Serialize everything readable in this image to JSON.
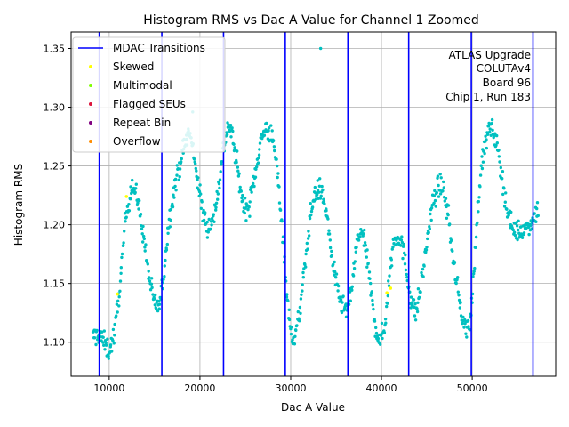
{
  "chart_data": {
    "type": "scatter",
    "title": "Histogram RMS vs Dac A Value for Channel 1 Zoomed",
    "xlabel": "Dac A Value",
    "ylabel": "Histogram RMS",
    "xlim": [
      5800,
      59200
    ],
    "ylim": [
      1.071,
      1.364
    ],
    "grid": true,
    "xticks": [
      10000,
      20000,
      30000,
      40000,
      50000
    ],
    "xtick_labels": [
      "10000",
      "20000",
      "30000",
      "40000",
      "50000"
    ],
    "yticks": [
      1.1,
      1.15,
      1.2,
      1.25,
      1.3,
      1.35
    ],
    "ytick_labels": [
      "1.10",
      "1.15",
      "1.20",
      "1.25",
      "1.30",
      "1.35"
    ],
    "mdac_transitions": [
      8900,
      15800,
      22600,
      29400,
      36300,
      43000,
      49900,
      56700
    ],
    "legend": {
      "placement": "top-left",
      "entries": [
        {
          "label": "MDAC Transitions",
          "kind": "line",
          "color": "#0000ff"
        },
        {
          "label": "Skewed",
          "kind": "dot",
          "color": "#ffff00"
        },
        {
          "label": "Multimodal",
          "kind": "dot",
          "color": "#7fff00"
        },
        {
          "label": "Flagged SEUs",
          "kind": "dot",
          "color": "#dc143c"
        },
        {
          "label": "Repeat Bin",
          "kind": "dot",
          "color": "#800080"
        },
        {
          "label": "Overflow",
          "kind": "dot",
          "color": "#ff8c00"
        }
      ]
    },
    "annotation_lines": [
      "ATLAS Upgrade",
      "COLUTAv4",
      "Board 96",
      "Chip 1, Run 183"
    ],
    "series": [
      {
        "name": "Data",
        "color": "#00c0c0",
        "trend": [
          [
            8200,
            1.104
          ],
          [
            8900,
            1.107
          ],
          [
            9400,
            1.1
          ],
          [
            10000,
            1.092
          ],
          [
            10600,
            1.108
          ],
          [
            11200,
            1.15
          ],
          [
            11800,
            1.205
          ],
          [
            12500,
            1.235
          ],
          [
            13100,
            1.222
          ],
          [
            13700,
            1.195
          ],
          [
            14300,
            1.16
          ],
          [
            14900,
            1.135
          ],
          [
            15500,
            1.13
          ],
          [
            15900,
            1.15
          ],
          [
            16400,
            1.19
          ],
          [
            17000,
            1.225
          ],
          [
            17600,
            1.245
          ],
          [
            18200,
            1.265
          ],
          [
            18800,
            1.28
          ],
          [
            19300,
            1.262
          ],
          [
            19800,
            1.235
          ],
          [
            20300,
            1.21
          ],
          [
            20900,
            1.198
          ],
          [
            21500,
            1.205
          ],
          [
            22100,
            1.235
          ],
          [
            22600,
            1.265
          ],
          [
            23100,
            1.285
          ],
          [
            23600,
            1.275
          ],
          [
            24200,
            1.245
          ],
          [
            24800,
            1.215
          ],
          [
            25400,
            1.215
          ],
          [
            26000,
            1.24
          ],
          [
            26600,
            1.268
          ],
          [
            27200,
            1.282
          ],
          [
            27800,
            1.278
          ],
          [
            28400,
            1.255
          ],
          [
            29000,
            1.205
          ],
          [
            29400,
            1.16
          ],
          [
            29900,
            1.112
          ],
          [
            30400,
            1.102
          ],
          [
            30900,
            1.12
          ],
          [
            31500,
            1.16
          ],
          [
            32100,
            1.205
          ],
          [
            32700,
            1.228
          ],
          [
            33300,
            1.23
          ],
          [
            33900,
            1.212
          ],
          [
            34500,
            1.175
          ],
          [
            35100,
            1.145
          ],
          [
            35700,
            1.13
          ],
          [
            36300,
            1.127
          ],
          [
            36800,
            1.15
          ],
          [
            37300,
            1.185
          ],
          [
            37800,
            1.195
          ],
          [
            38300,
            1.178
          ],
          [
            38800,
            1.145
          ],
          [
            39300,
            1.115
          ],
          [
            39800,
            1.1
          ],
          [
            40300,
            1.11
          ],
          [
            40800,
            1.15
          ],
          [
            41300,
            1.185
          ],
          [
            41800,
            1.192
          ],
          [
            42300,
            1.182
          ],
          [
            42800,
            1.158
          ],
          [
            43300,
            1.135
          ],
          [
            43800,
            1.125
          ],
          [
            44400,
            1.15
          ],
          [
            45000,
            1.185
          ],
          [
            45600,
            1.215
          ],
          [
            46200,
            1.232
          ],
          [
            46800,
            1.232
          ],
          [
            47400,
            1.205
          ],
          [
            48000,
            1.165
          ],
          [
            48600,
            1.135
          ],
          [
            49200,
            1.112
          ],
          [
            49800,
            1.115
          ],
          [
            50300,
            1.175
          ],
          [
            50800,
            1.235
          ],
          [
            51300,
            1.265
          ],
          [
            51800,
            1.28
          ],
          [
            52300,
            1.28
          ],
          [
            52800,
            1.265
          ],
          [
            53300,
            1.24
          ],
          [
            53800,
            1.215
          ],
          [
            54300,
            1.2
          ],
          [
            54800,
            1.195
          ],
          [
            55400,
            1.195
          ],
          [
            56000,
            1.198
          ],
          [
            56700,
            1.205
          ],
          [
            57300,
            1.214
          ]
        ]
      },
      {
        "name": "Skewed",
        "color": "#ffff00",
        "points": [
          [
            11900,
            1.224
          ],
          [
            10900,
            1.141
          ],
          [
            40600,
            1.142
          ],
          [
            41000,
            1.146
          ]
        ]
      }
    ],
    "outliers": [
      [
        33300,
        1.35
      ],
      [
        19200,
        1.296
      ]
    ]
  }
}
